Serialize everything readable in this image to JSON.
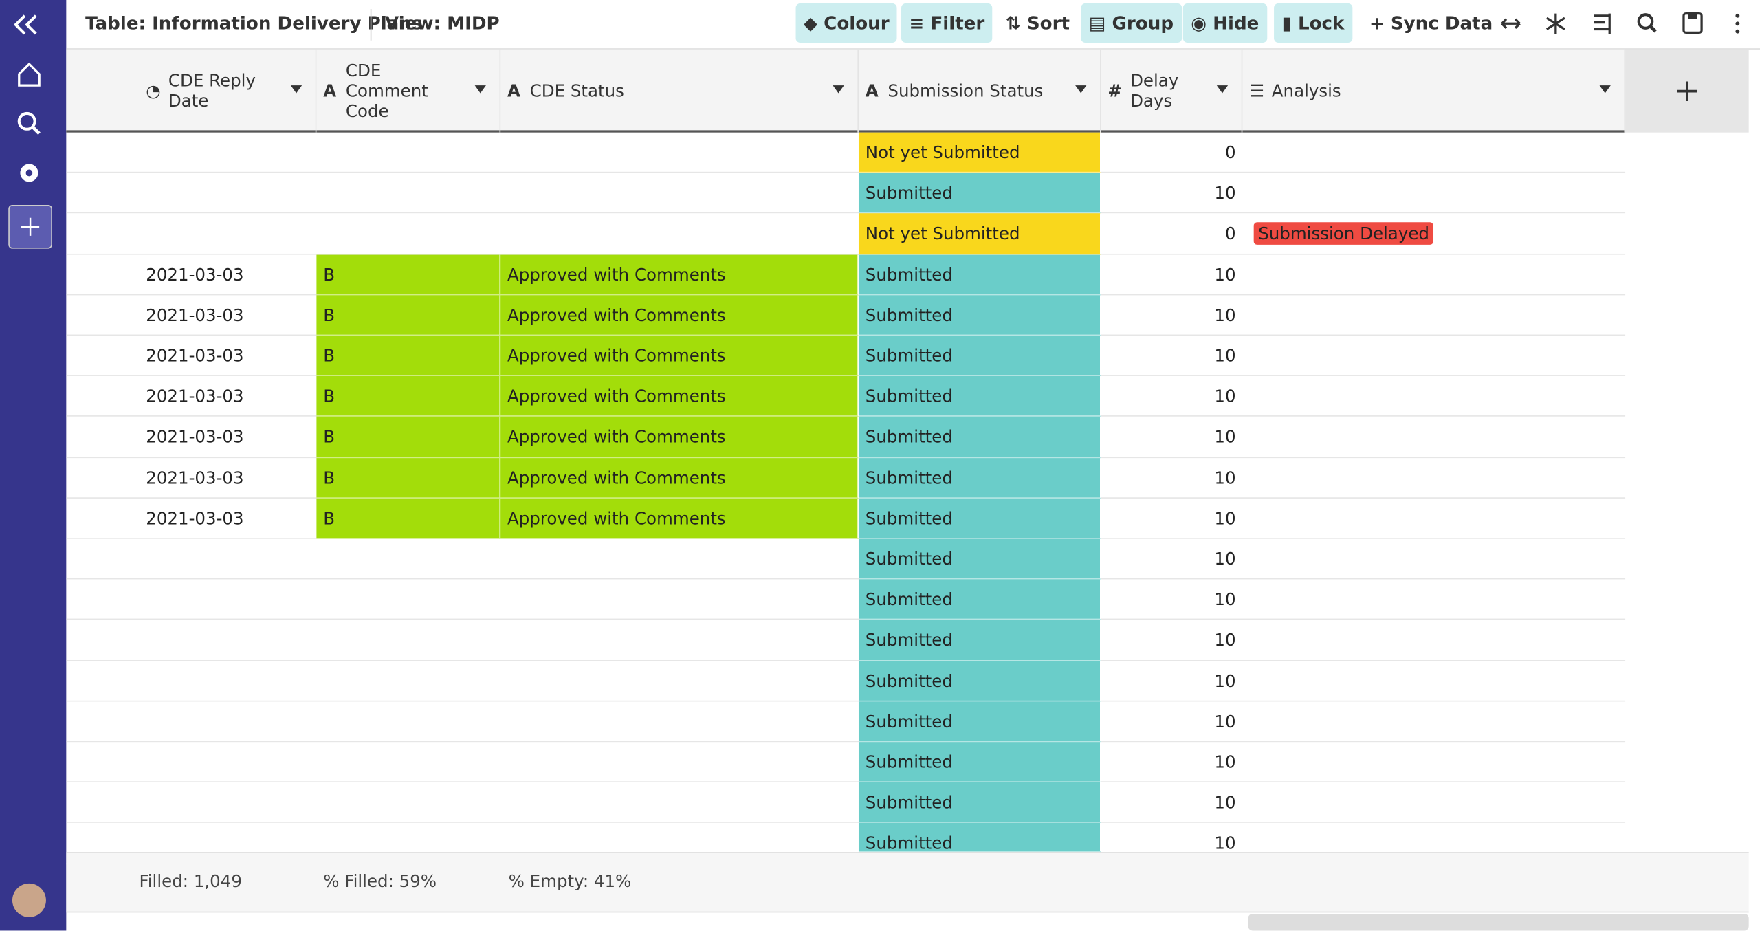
{
  "header": {
    "table_title": "Table: Information Delivery Plans",
    "view": "View: MIDP"
  },
  "toolbar": [
    "Colour",
    "Filter",
    "Sort",
    "Group",
    "Hide",
    "Lock",
    "Sync Data"
  ],
  "columns": [
    "CDE Reply Date",
    "CDE Comment Code",
    "CDE Status",
    "Submission Status",
    "Delay Days",
    "Analysis"
  ],
  "rows": [
    [
      null,
      null,
      null,
      "Not yet Submitted",
      0,
      null
    ],
    [
      null,
      null,
      null,
      "Submitted",
      10,
      null
    ],
    [
      null,
      null,
      null,
      "Not yet Submitted",
      0,
      "Submission Delayed"
    ],
    [
      "2021-03-03",
      "B",
      "Approved with Comments",
      "Submitted",
      10,
      null
    ],
    [
      "2021-03-03",
      "B",
      "Approved with Comments",
      "Submitted",
      10,
      null
    ],
    [
      "2021-03-03",
      "B",
      "Approved with Comments",
      "Submitted",
      10,
      null
    ],
    [
      "2021-03-03",
      "B",
      "Approved with Comments",
      "Submitted",
      10,
      null
    ],
    [
      "2021-03-03",
      "B",
      "Approved with Comments",
      "Submitted",
      10,
      null
    ],
    [
      "2021-03-03",
      "B",
      "Approved with Comments",
      "Submitted",
      10,
      null
    ],
    [
      "2021-03-03",
      "B",
      "Approved with Comments",
      "Submitted",
      10,
      null
    ],
    [
      null,
      null,
      null,
      "Submitted",
      10,
      null
    ],
    [
      null,
      null,
      null,
      "Submitted",
      10,
      null
    ],
    [
      null,
      null,
      null,
      "Submitted",
      10,
      null
    ],
    [
      null,
      null,
      null,
      "Submitted",
      10,
      null
    ],
    [
      null,
      null,
      null,
      "Submitted",
      10,
      null
    ],
    [
      null,
      null,
      null,
      "Submitted",
      10,
      null
    ],
    [
      null,
      null,
      null,
      "Submitted",
      10,
      null
    ],
    [
      null,
      null,
      null,
      "Submitted",
      10,
      null
    ]
  ],
  "footer": {
    "filled": "Filled: 1,049",
    "pct_filled": "% Filled: 59%",
    "pct_empty": "% Empty: 41%"
  }
}
